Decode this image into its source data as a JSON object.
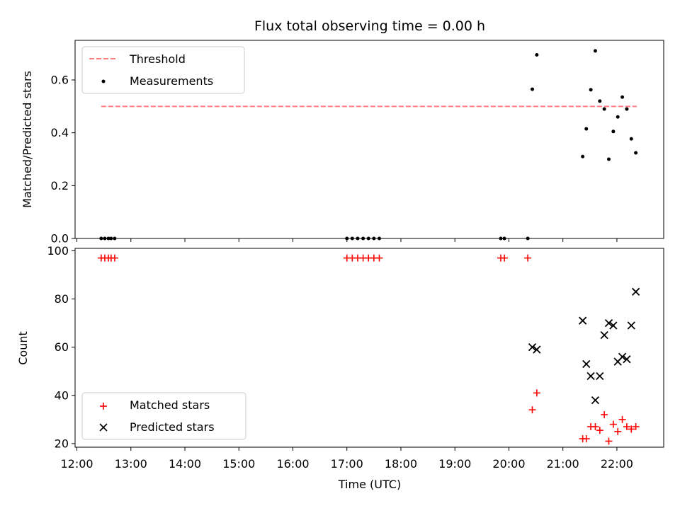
{
  "chart_data": [
    {
      "type": "scatter",
      "title": "Flux total observing time = 0.00 h",
      "ylabel": "Matched/Predicted stars",
      "xlabel": "",
      "ylim": [
        0,
        0.75
      ],
      "y_ticks": [
        0.0,
        0.2,
        0.4,
        0.6
      ],
      "y_tick_labels": [
        "0.0",
        "0.2",
        "0.4",
        "0.6"
      ],
      "legend_position": "upper-left",
      "threshold": {
        "name": "Threshold",
        "value": 0.5,
        "x_start": "12:27",
        "x_end": "22:22",
        "color": "#ff0000",
        "alpha": 0.5,
        "linestyle": "dashed"
      },
      "series": [
        {
          "name": "Measurements",
          "marker": "dot",
          "color": "#000000",
          "points": [
            [
              "12:27",
              0.0
            ],
            [
              "12:31",
              0.0
            ],
            [
              "12:35",
              0.0
            ],
            [
              "12:38",
              0.0
            ],
            [
              "12:42",
              0.0
            ],
            [
              "17:00",
              0.0
            ],
            [
              "17:06",
              0.0
            ],
            [
              "17:12",
              0.0
            ],
            [
              "17:18",
              0.0
            ],
            [
              "17:24",
              0.0
            ],
            [
              "17:30",
              0.0
            ],
            [
              "17:36",
              0.0
            ],
            [
              "19:51",
              0.0
            ],
            [
              "19:55",
              0.0
            ],
            [
              "20:21",
              0.0
            ],
            [
              "20:26",
              0.565
            ],
            [
              "20:31",
              0.695
            ],
            [
              "21:22",
              0.31
            ],
            [
              "21:26",
              0.415
            ],
            [
              "21:31",
              0.563
            ],
            [
              "21:36",
              0.71
            ],
            [
              "21:41",
              0.52
            ],
            [
              "21:46",
              0.49
            ],
            [
              "21:51",
              0.3
            ],
            [
              "21:56",
              0.405
            ],
            [
              "22:01",
              0.46
            ],
            [
              "22:06",
              0.535
            ],
            [
              "22:11",
              0.49
            ],
            [
              "22:16",
              0.377
            ],
            [
              "22:21",
              0.324
            ]
          ]
        }
      ]
    },
    {
      "type": "scatter",
      "title": "",
      "xlabel": "Time (UTC)",
      "ylabel": "Count",
      "ylim": [
        18.5,
        101
      ],
      "y_ticks": [
        20,
        40,
        60,
        80,
        100
      ],
      "y_tick_labels": [
        "20",
        "40",
        "60",
        "80",
        "100"
      ],
      "x_tick_labels": [
        "12:00",
        "13:00",
        "14:00",
        "15:00",
        "16:00",
        "17:00",
        "18:00",
        "19:00",
        "20:00",
        "21:00",
        "22:00"
      ],
      "x_range": [
        "11:58",
        "22:52"
      ],
      "legend_position": "lower-left",
      "series": [
        {
          "name": "Matched stars",
          "marker": "plus",
          "color": "#ff0000",
          "points": [
            [
              "12:27",
              97
            ],
            [
              "12:31",
              97
            ],
            [
              "12:35",
              97
            ],
            [
              "12:38",
              97
            ],
            [
              "12:42",
              97
            ],
            [
              "17:00",
              97
            ],
            [
              "17:06",
              97
            ],
            [
              "17:12",
              97
            ],
            [
              "17:18",
              97
            ],
            [
              "17:24",
              97
            ],
            [
              "17:30",
              97
            ],
            [
              "17:36",
              97
            ],
            [
              "19:51",
              97
            ],
            [
              "19:55",
              97
            ],
            [
              "20:21",
              97
            ],
            [
              "20:26",
              34
            ],
            [
              "20:31",
              41
            ],
            [
              "21:22",
              22
            ],
            [
              "21:26",
              22
            ],
            [
              "21:31",
              27
            ],
            [
              "21:36",
              27
            ],
            [
              "21:41",
              25.5
            ],
            [
              "21:46",
              32
            ],
            [
              "21:51",
              21
            ],
            [
              "21:56",
              28
            ],
            [
              "22:01",
              25
            ],
            [
              "22:06",
              30
            ],
            [
              "22:11",
              27
            ],
            [
              "22:16",
              26
            ],
            [
              "22:21",
              27
            ]
          ]
        },
        {
          "name": "Predicted stars",
          "marker": "x",
          "color": "#000000",
          "points": [
            [
              "20:26",
              60
            ],
            [
              "20:31",
              59
            ],
            [
              "21:22",
              71
            ],
            [
              "21:26",
              53
            ],
            [
              "21:31",
              48
            ],
            [
              "21:36",
              38
            ],
            [
              "21:41",
              48
            ],
            [
              "21:46",
              65
            ],
            [
              "21:51",
              70
            ],
            [
              "21:56",
              69
            ],
            [
              "22:01",
              54
            ],
            [
              "22:06",
              56
            ],
            [
              "22:11",
              55
            ],
            [
              "22:16",
              69
            ],
            [
              "22:21",
              83
            ]
          ]
        }
      ]
    }
  ]
}
